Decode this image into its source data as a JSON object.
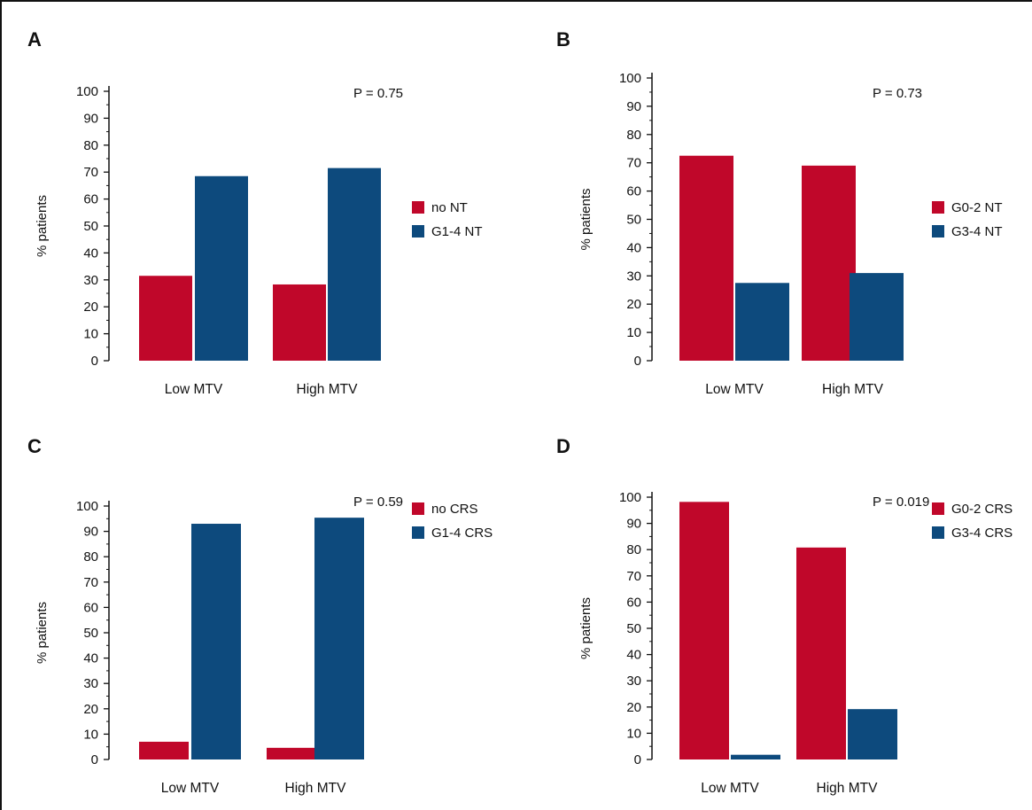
{
  "colors": {
    "series1": "#c0072a",
    "series2": "#0d4a7d"
  },
  "chart_data": [
    {
      "panel": "A",
      "type": "bar",
      "ylabel": "% patients",
      "ylim": [
        0,
        100
      ],
      "yticks": [
        0,
        10,
        20,
        30,
        40,
        50,
        60,
        70,
        80,
        90,
        100
      ],
      "categories": [
        "Low MTV",
        "High MTV"
      ],
      "pvalue": "P = 0.75",
      "legend_position": "right",
      "series": [
        {
          "name": "no NT",
          "values": [
            31.5,
            28.3
          ]
        },
        {
          "name": "G1-4 NT",
          "values": [
            68.5,
            71.5
          ]
        }
      ]
    },
    {
      "panel": "B",
      "type": "bar",
      "ylabel": "% patients",
      "ylim": [
        0,
        100
      ],
      "yticks": [
        0,
        10,
        20,
        30,
        40,
        50,
        60,
        70,
        80,
        90,
        100
      ],
      "categories": [
        "Low MTV",
        "High MTV"
      ],
      "pvalue": "P = 0.73",
      "legend_position": "right",
      "series": [
        {
          "name": "G0-2 NT",
          "values": [
            72.5,
            69.0
          ]
        },
        {
          "name": "G3-4 NT",
          "values": [
            27.5,
            31.0
          ]
        }
      ]
    },
    {
      "panel": "C",
      "type": "bar",
      "ylabel": "% patients",
      "ylim": [
        0,
        100
      ],
      "yticks": [
        0,
        10,
        20,
        30,
        40,
        50,
        60,
        70,
        80,
        90,
        100
      ],
      "categories": [
        "Low MTV",
        "High MTV"
      ],
      "pvalue": "P = 0.59",
      "legend_position": "right",
      "series": [
        {
          "name": "no CRS",
          "values": [
            7.0,
            4.6
          ]
        },
        {
          "name": "G1-4 CRS",
          "values": [
            93.0,
            95.4
          ]
        }
      ]
    },
    {
      "panel": "D",
      "type": "bar",
      "ylabel": "% patients",
      "ylim": [
        0,
        100
      ],
      "yticks": [
        0,
        10,
        20,
        30,
        40,
        50,
        60,
        70,
        80,
        90,
        100
      ],
      "categories": [
        "Low MTV",
        "High MTV"
      ],
      "pvalue": "P = 0.019",
      "legend_position": "right",
      "series": [
        {
          "name": "G0-2 CRS",
          "values": [
            98.2,
            80.8
          ]
        },
        {
          "name": "G3-4 CRS",
          "values": [
            1.8,
            19.2
          ]
        }
      ]
    }
  ]
}
